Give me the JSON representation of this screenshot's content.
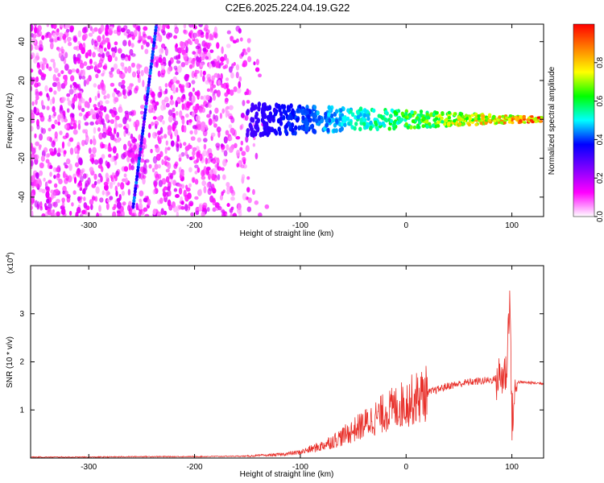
{
  "title": "C2E6.2025.224.04.19.G22",
  "top_panel": {
    "xlabel": "Height of straight line (km)",
    "ylabel": "Frequency (Hz)",
    "xlim": [
      -355,
      130
    ],
    "ylim": [
      -50,
      49
    ],
    "xticks": [
      "-300",
      "-200",
      "-100",
      "0",
      "100"
    ],
    "yticks": [
      "40",
      "20",
      "0",
      "-20",
      "-40"
    ],
    "colorbar": {
      "label": "Normalized spectral amplitude",
      "ticks": [
        "0.0",
        "0.2",
        "0.4",
        "0.6",
        "0.8"
      ],
      "colors": [
        "#ffffff",
        "#ff00ff",
        "#7f00ff",
        "#0000ff",
        "#00ffff",
        "#00ff00",
        "#ffff00",
        "#ff8000",
        "#ff0000"
      ]
    }
  },
  "bottom_panel": {
    "xlabel": "Height of straight line (km)",
    "ylabel": "SNR (10 * v/v)",
    "multiplier": "(x10",
    "multiplier_exp": "4",
    "multiplier_close": ")",
    "xlim": [
      -355,
      130
    ],
    "ylim": [
      0,
      4.0
    ],
    "xticks": [
      "-300",
      "-200",
      "-100",
      "0",
      "100"
    ],
    "yticks": [
      "3",
      "2",
      "1"
    ],
    "line_color": "#e8302a"
  },
  "chart_data": [
    {
      "type": "heatmap",
      "title": "C2E6.2025.224.04.19.G22",
      "xlabel": "Height of straight line (km)",
      "ylabel": "Frequency (Hz)",
      "xlim": [
        -355,
        130
      ],
      "ylim": [
        -50,
        49
      ],
      "zlabel": "Normalized spectral amplitude",
      "zlim": [
        0,
        1
      ],
      "features": [
        {
          "name": "diffuse noise",
          "x_range": [
            -355,
            -130
          ],
          "y_range": [
            -50,
            49
          ],
          "amplitude": 0.1
        },
        {
          "name": "diagonal streak",
          "x_start": -258,
          "x_end": -236,
          "y_start": -45,
          "y_end": 49,
          "amplitude": 0.35
        },
        {
          "name": "signal band",
          "x_start": -150,
          "x_end": 130,
          "center_hz": 0,
          "amplitude_start": 0.3,
          "amplitude_end": 0.95
        }
      ]
    },
    {
      "type": "line",
      "xlabel": "Height of straight line (km)",
      "ylabel": "SNR (10 * v/v)",
      "units_multiplier": 10000,
      "xlim": [
        -355,
        130
      ],
      "ylim": [
        0,
        4.0
      ],
      "series": [
        {
          "x": [
            -355,
            -300,
            -250,
            -200,
            -150,
            -120,
            -100,
            -80,
            -60,
            -40,
            -20,
            0,
            20,
            40,
            60,
            80,
            90,
            95,
            98,
            100,
            105,
            130
          ],
          "y": [
            0.02,
            0.02,
            0.03,
            0.03,
            0.04,
            0.07,
            0.12,
            0.25,
            0.45,
            0.7,
            0.95,
            1.15,
            1.35,
            1.5,
            1.58,
            1.62,
            1.68,
            1.8,
            3.5,
            0.8,
            1.58,
            1.55
          ]
        }
      ]
    }
  ]
}
